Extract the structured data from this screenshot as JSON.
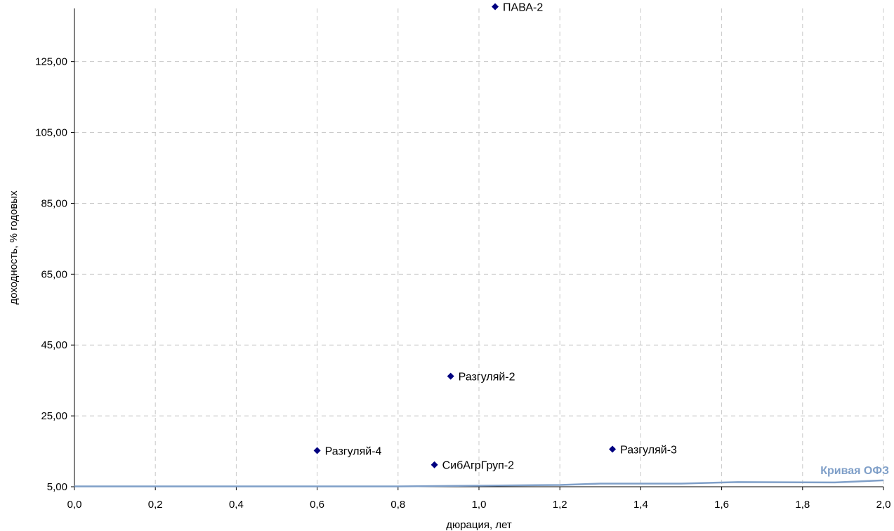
{
  "chart_data": {
    "type": "scatter",
    "xlabel": "дюрация, лет",
    "ylabel": "доходность, % годовых",
    "xlim": [
      0,
      2
    ],
    "ylim": [
      5,
      140
    ],
    "x_ticks": [
      "0,0",
      "0,2",
      "0,4",
      "0,6",
      "0,8",
      "1,0",
      "1,2",
      "1,4",
      "1,6",
      "1,8",
      "2,0"
    ],
    "y_ticks": [
      "5,00",
      "25,00",
      "45,00",
      "65,00",
      "85,00",
      "105,00",
      "125,00"
    ],
    "grid": true,
    "colors": {
      "points": "#000080",
      "curve": "#7f9fc8",
      "grid": "#c8c8c8"
    },
    "series": [
      {
        "points": [
          {
            "label": "ПАВА-2",
            "x": 1.04,
            "y": 140.5
          },
          {
            "label": "Разгуляй-2",
            "x": 0.93,
            "y": 36.2
          },
          {
            "label": "Разгуляй-4",
            "x": 0.6,
            "y": 15.2
          },
          {
            "label": "СибАгрГруп-2",
            "x": 0.89,
            "y": 11.2
          },
          {
            "label": "Разгуляй-3",
            "x": 1.33,
            "y": 15.6
          }
        ]
      },
      {
        "name": "Кривая ОФЗ",
        "type": "line",
        "x": [
          0.0,
          0.3,
          0.6,
          0.8,
          1.0,
          1.2,
          1.3,
          1.5,
          1.64,
          1.88,
          2.0
        ],
        "y": [
          4.6,
          4.7,
          4.9,
          5.1,
          5.3,
          5.5,
          5.9,
          5.9,
          6.3,
          6.2,
          6.8
        ]
      }
    ]
  }
}
